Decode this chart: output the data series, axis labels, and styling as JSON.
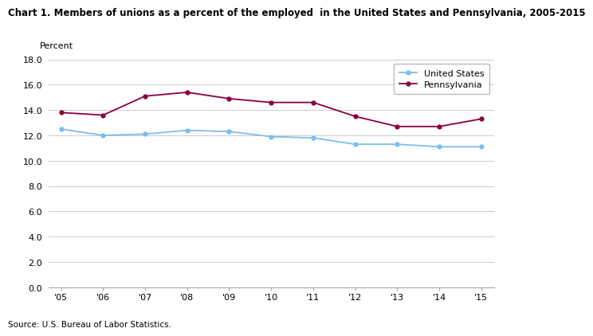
{
  "title": "Chart 1. Members of unions as a percent of the employed  in the United States and Pennsylvania, 2005-2015",
  "ylabel_text": "Percent",
  "source": "Source: U.S. Bureau of Labor Statistics.",
  "years": [
    "'05",
    "'06",
    "'07",
    "'08",
    "'09",
    "'10",
    "'11",
    "'12",
    "'13",
    "'14",
    "'15"
  ],
  "us_values": [
    12.5,
    12.0,
    12.1,
    12.4,
    12.3,
    11.9,
    11.8,
    11.3,
    11.3,
    11.1,
    11.1
  ],
  "pa_values": [
    13.8,
    13.6,
    15.1,
    15.4,
    14.9,
    14.6,
    14.6,
    13.5,
    12.7,
    12.7,
    13.3
  ],
  "us_color": "#7bbfea",
  "pa_color": "#8b0040",
  "us_label": "United States",
  "pa_label": "Pennsylvania",
  "ylim": [
    0.0,
    18.0
  ],
  "yticks": [
    0.0,
    2.0,
    4.0,
    6.0,
    8.0,
    10.0,
    12.0,
    14.0,
    16.0,
    18.0
  ],
  "grid_color": "#cccccc",
  "bg_color": "#ffffff",
  "title_fontsize": 8.5,
  "axis_fontsize": 8,
  "legend_fontsize": 8,
  "source_fontsize": 7.5
}
